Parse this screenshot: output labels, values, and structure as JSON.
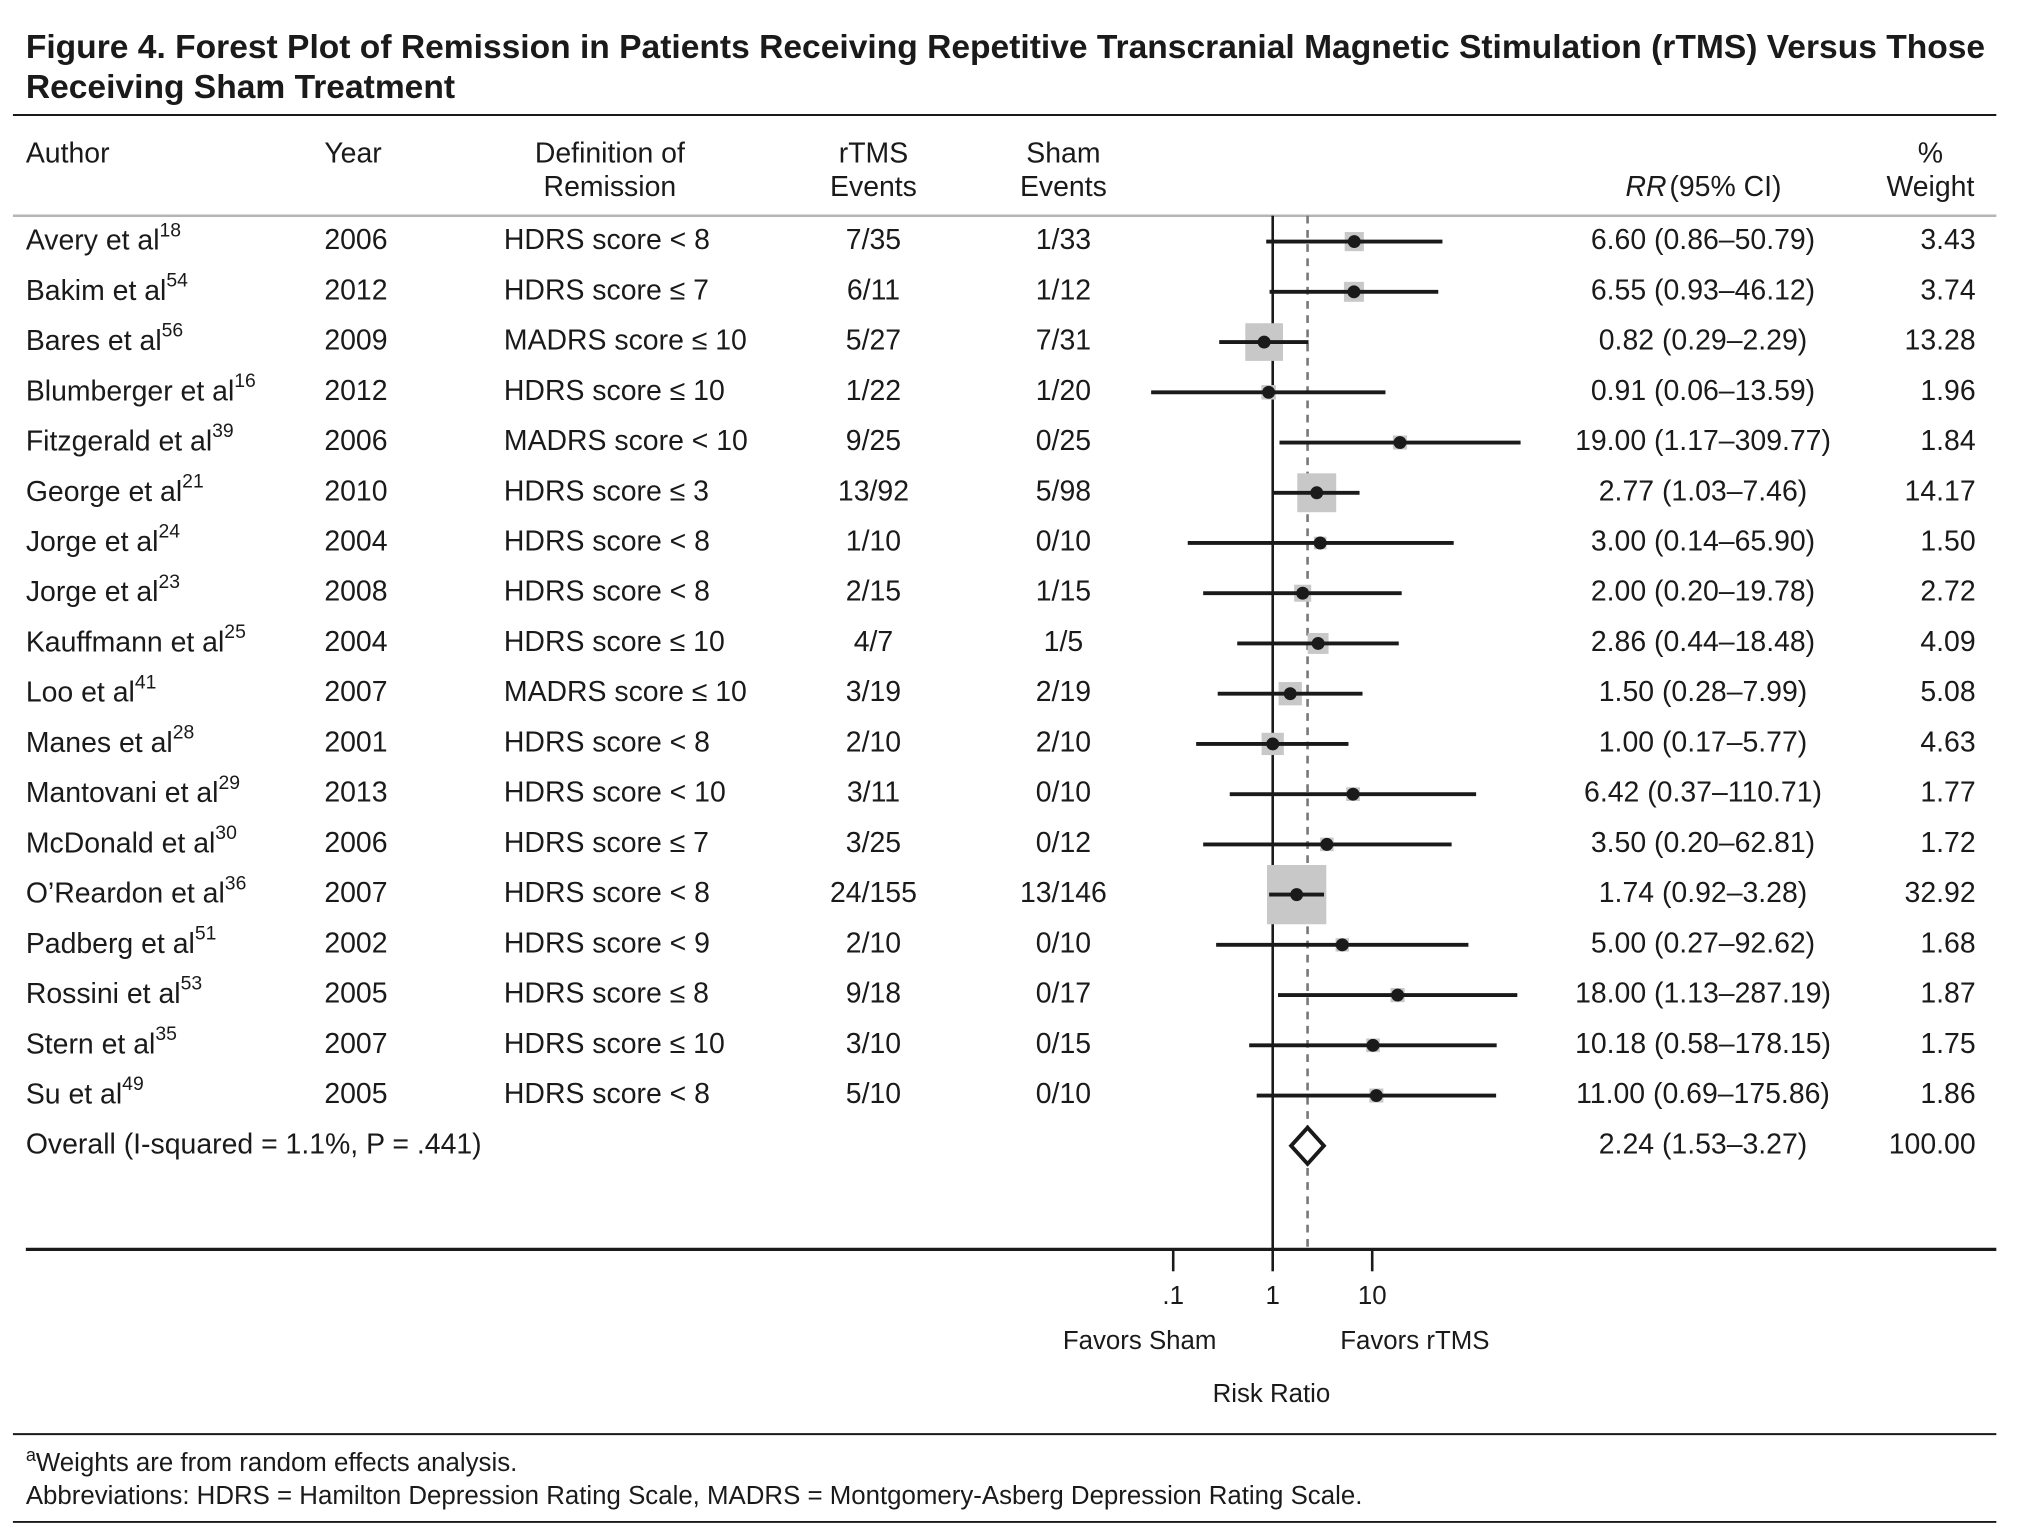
{
  "chart_data": {
    "type": "forest",
    "title": [
      "Figure 4. Forest Plot of Remission in Patients Receiving Repetitive Transcranial Magnetic Stimulation (rTMS) Versus Those",
      "Receiving Sham Treatment"
    ],
    "columns": {
      "author": [
        "Author"
      ],
      "year": [
        "Year"
      ],
      "definition": [
        "Definition of",
        "Remission"
      ],
      "rtms": [
        "rTMS",
        "Events"
      ],
      "sham": [
        "Sham",
        "Events"
      ],
      "rr": [
        "RR",
        "(95% CI)"
      ],
      "weight": [
        "%",
        "Weight"
      ]
    },
    "studies": [
      {
        "author": "Avery et al",
        "ref": "18",
        "year": "2006",
        "definition": "HDRS score < 8",
        "rtms_events": "7/35",
        "sham_events": "1/33",
        "rr": 6.6,
        "ci_low": 0.86,
        "ci_high": 50.79,
        "rr_label": "6.60 (0.86–50.79)",
        "weight": 3.43,
        "weight_label": "3.43"
      },
      {
        "author": "Bakim et al",
        "ref": "54",
        "year": "2012",
        "definition": "HDRS score ≤ 7",
        "rtms_events": "6/11",
        "sham_events": "1/12",
        "rr": 6.55,
        "ci_low": 0.93,
        "ci_high": 46.12,
        "rr_label": "6.55 (0.93–46.12)",
        "weight": 3.74,
        "weight_label": "3.74"
      },
      {
        "author": "Bares et al",
        "ref": "56",
        "year": "2009",
        "definition": "MADRS score ≤ 10",
        "rtms_events": "5/27",
        "sham_events": "7/31",
        "rr": 0.82,
        "ci_low": 0.29,
        "ci_high": 2.29,
        "rr_label": "0.82 (0.29–2.29)",
        "weight": 13.28,
        "weight_label": "13.28"
      },
      {
        "author": "Blumberger et al",
        "ref": "16",
        "year": "2012",
        "definition": "HDRS score ≤ 10",
        "rtms_events": "1/22",
        "sham_events": "1/20",
        "rr": 0.91,
        "ci_low": 0.06,
        "ci_high": 13.59,
        "rr_label": "0.91 (0.06–13.59)",
        "weight": 1.96,
        "weight_label": "1.96"
      },
      {
        "author": "Fitzgerald et al",
        "ref": "39",
        "year": "2006",
        "definition": "MADRS score < 10",
        "rtms_events": "9/25",
        "sham_events": "0/25",
        "rr": 19.0,
        "ci_low": 1.17,
        "ci_high": 309.77,
        "rr_label": "19.00 (1.17–309.77)",
        "weight": 1.84,
        "weight_label": "1.84"
      },
      {
        "author": "George et al",
        "ref": "21",
        "year": "2010",
        "definition": "HDRS score ≤ 3",
        "rtms_events": "13/92",
        "sham_events": "5/98",
        "rr": 2.77,
        "ci_low": 1.03,
        "ci_high": 7.46,
        "rr_label": "2.77 (1.03–7.46)",
        "weight": 14.17,
        "weight_label": "14.17"
      },
      {
        "author": "Jorge et al",
        "ref": "24",
        "year": "2004",
        "definition": "HDRS score < 8",
        "rtms_events": "1/10",
        "sham_events": "0/10",
        "rr": 3.0,
        "ci_low": 0.14,
        "ci_high": 65.9,
        "rr_label": "3.00 (0.14–65.90)",
        "weight": 1.5,
        "weight_label": "1.50"
      },
      {
        "author": "Jorge et al",
        "ref": "23",
        "year": "2008",
        "definition": "HDRS score < 8",
        "rtms_events": "2/15",
        "sham_events": "1/15",
        "rr": 2.0,
        "ci_low": 0.2,
        "ci_high": 19.78,
        "rr_label": "2.00 (0.20–19.78)",
        "weight": 2.72,
        "weight_label": "2.72"
      },
      {
        "author": "Kauffmann et al",
        "ref": "25",
        "year": "2004",
        "definition": "HDRS score ≤ 10",
        "rtms_events": "4/7",
        "sham_events": "1/5",
        "rr": 2.86,
        "ci_low": 0.44,
        "ci_high": 18.48,
        "rr_label": "2.86 (0.44–18.48)",
        "weight": 4.09,
        "weight_label": "4.09"
      },
      {
        "author": "Loo et al",
        "ref": "41",
        "year": "2007",
        "definition": "MADRS score ≤ 10",
        "rtms_events": "3/19",
        "sham_events": "2/19",
        "rr": 1.5,
        "ci_low": 0.28,
        "ci_high": 7.99,
        "rr_label": "1.50 (0.28–7.99)",
        "weight": 5.08,
        "weight_label": "5.08"
      },
      {
        "author": "Manes et al",
        "ref": "28",
        "year": "2001",
        "definition": "HDRS score < 8",
        "rtms_events": "2/10",
        "sham_events": "2/10",
        "rr": 1.0,
        "ci_low": 0.17,
        "ci_high": 5.77,
        "rr_label": "1.00 (0.17–5.77)",
        "weight": 4.63,
        "weight_label": "4.63"
      },
      {
        "author": "Mantovani et al",
        "ref": "29",
        "year": "2013",
        "definition": "HDRS score < 10",
        "rtms_events": "3/11",
        "sham_events": "0/10",
        "rr": 6.42,
        "ci_low": 0.37,
        "ci_high": 110.71,
        "rr_label": "6.42 (0.37–110.71)",
        "weight": 1.77,
        "weight_label": "1.77"
      },
      {
        "author": "McDonald et al",
        "ref": "30",
        "year": "2006",
        "definition": "HDRS score ≤ 7",
        "rtms_events": "3/25",
        "sham_events": "0/12",
        "rr": 3.5,
        "ci_low": 0.2,
        "ci_high": 62.81,
        "rr_label": "3.50 (0.20–62.81)",
        "weight": 1.72,
        "weight_label": "1.72"
      },
      {
        "author": "O’Reardon et al",
        "ref": "36",
        "year": "2007",
        "definition": "HDRS score < 8",
        "rtms_events": "24/155",
        "sham_events": "13/146",
        "rr": 1.74,
        "ci_low": 0.92,
        "ci_high": 3.28,
        "rr_label": "1.74 (0.92–3.28)",
        "weight": 32.92,
        "weight_label": "32.92"
      },
      {
        "author": "Padberg et al",
        "ref": "51",
        "year": "2002",
        "definition": "HDRS score < 9",
        "rtms_events": "2/10",
        "sham_events": "0/10",
        "rr": 5.0,
        "ci_low": 0.27,
        "ci_high": 92.62,
        "rr_label": "5.00 (0.27–92.62)",
        "weight": 1.68,
        "weight_label": "1.68"
      },
      {
        "author": "Rossini et al",
        "ref": "53",
        "year": "2005",
        "definition": "HDRS score ≤ 8",
        "rtms_events": "9/18",
        "sham_events": "0/17",
        "rr": 18.0,
        "ci_low": 1.13,
        "ci_high": 287.19,
        "rr_label": "18.00 (1.13–287.19)",
        "weight": 1.87,
        "weight_label": "1.87"
      },
      {
        "author": "Stern et al",
        "ref": "35",
        "year": "2007",
        "definition": "HDRS score ≤ 10",
        "rtms_events": "3/10",
        "sham_events": "0/15",
        "rr": 10.18,
        "ci_low": 0.58,
        "ci_high": 178.15,
        "rr_label": "10.18 (0.58–178.15)",
        "weight": 1.75,
        "weight_label": "1.75"
      },
      {
        "author": "Su et al",
        "ref": "49",
        "year": "2005",
        "definition": "HDRS score < 8",
        "rtms_events": "5/10",
        "sham_events": "0/10",
        "rr": 11.0,
        "ci_low": 0.69,
        "ci_high": 175.86,
        "rr_label": "11.00 (0.69–175.86)",
        "weight": 1.86,
        "weight_label": "1.86"
      }
    ],
    "overall": {
      "label": "Overall (I-squared = 1.1%, P = .441)",
      "rr": 2.24,
      "ci_low": 1.53,
      "ci_high": 3.27,
      "rr_label": "2.24 (1.53–3.27)",
      "weight": 100,
      "weight_label": "100.00"
    },
    "log_scale": true,
    "xlim": [
      0.003,
      320
    ],
    "xticks": [
      {
        "value": 0.1,
        "label": ".1"
      },
      1,
      10
    ],
    "favors_left": "Favors Sham",
    "favors_right": "Favors rTMS",
    "xlabel": "Risk Ratio",
    "box_color": "#c8c8c8",
    "line_color": "#1a1a1a",
    "footnotes": [
      {
        "marker": "a",
        "text": "Weights are from random effects analysis."
      },
      {
        "text": "Abbreviations: HDRS = Hamilton Depression Rating Scale, MADRS = Montgomery-Asberg Depression Rating Scale."
      }
    ]
  }
}
